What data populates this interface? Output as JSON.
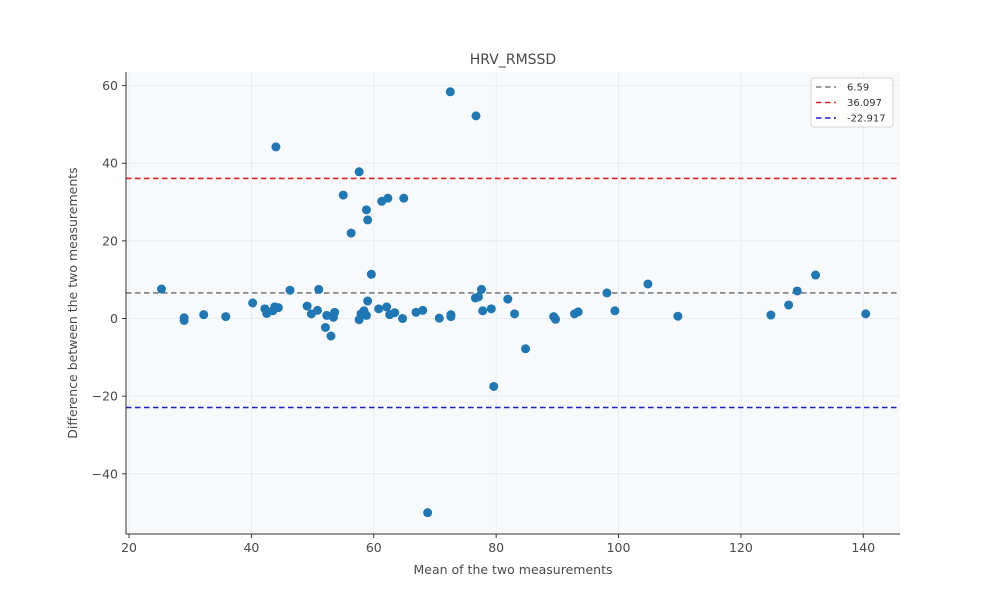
{
  "chart_data": {
    "type": "scatter",
    "title": "HRV_RMSSD",
    "xlabel": "Mean of the two measurements",
    "ylabel": "Difference between the two measurements",
    "xlim": [
      19.5,
      146
    ],
    "ylim": [
      -55.5,
      63.5
    ],
    "xticks": [
      20,
      40,
      60,
      80,
      100,
      120,
      140
    ],
    "yticks": [
      -40,
      -20,
      0,
      20,
      40,
      60
    ],
    "grid": true,
    "legend_position": "top-right",
    "point_color": "#1f77b4",
    "points": [
      [
        25.3,
        7.6
      ],
      [
        29,
        0.2
      ],
      [
        29,
        -0.5
      ],
      [
        32.2,
        1.0
      ],
      [
        35.8,
        0.5
      ],
      [
        40.2,
        4.0
      ],
      [
        42.2,
        2.5
      ],
      [
        42.5,
        1.3
      ],
      [
        43.5,
        2.0
      ],
      [
        43.8,
        3.0
      ],
      [
        44.4,
        2.8
      ],
      [
        44.0,
        44.2
      ],
      [
        46.3,
        7.3
      ],
      [
        49.1,
        3.2
      ],
      [
        49.8,
        1.2
      ],
      [
        50.8,
        2.1
      ],
      [
        51.0,
        7.5
      ],
      [
        52.1,
        -2.3
      ],
      [
        52.3,
        0.8
      ],
      [
        53.0,
        -4.5
      ],
      [
        53.4,
        0.3
      ],
      [
        53.6,
        1.6
      ],
      [
        55.0,
        31.8
      ],
      [
        56.3,
        22.0
      ],
      [
        57.6,
        37.8
      ],
      [
        57.6,
        -0.3
      ],
      [
        57.9,
        1.2
      ],
      [
        58.4,
        2.0
      ],
      [
        58.8,
        28.0
      ],
      [
        58.8,
        0.8
      ],
      [
        59.0,
        4.5
      ],
      [
        59.0,
        25.4
      ],
      [
        59.6,
        11.4
      ],
      [
        60.8,
        2.5
      ],
      [
        61.3,
        30.2
      ],
      [
        62.1,
        3.0
      ],
      [
        62.3,
        31.0
      ],
      [
        62.6,
        1.0
      ],
      [
        63.4,
        1.5
      ],
      [
        64.7,
        0.0
      ],
      [
        64.9,
        31.0
      ],
      [
        66.9,
        1.6
      ],
      [
        68.0,
        2.1
      ],
      [
        68.8,
        -50.0
      ],
      [
        70.7,
        0.1
      ],
      [
        72.6,
        1.0
      ],
      [
        72.6,
        0.5
      ],
      [
        72.5,
        58.4
      ],
      [
        76.6,
        5.3
      ],
      [
        77.1,
        5.6
      ],
      [
        76.7,
        52.2
      ],
      [
        77.6,
        7.5
      ],
      [
        77.8,
        2.0
      ],
      [
        79.2,
        2.5
      ],
      [
        79.6,
        -17.5
      ],
      [
        81.9,
        5.0
      ],
      [
        83.0,
        1.2
      ],
      [
        84.8,
        -7.8
      ],
      [
        89.4,
        0.5
      ],
      [
        89.7,
        -0.2
      ],
      [
        92.8,
        1.2
      ],
      [
        93.4,
        1.7
      ],
      [
        98.1,
        6.6
      ],
      [
        99.4,
        2.0
      ],
      [
        104.8,
        8.9
      ],
      [
        109.7,
        0.6
      ],
      [
        124.9,
        0.9
      ],
      [
        127.8,
        3.5
      ],
      [
        129.2,
        7.1
      ],
      [
        132.2,
        11.2
      ],
      [
        140.4,
        1.2
      ]
    ],
    "reference_lines": [
      {
        "label": "6.59",
        "y": 6.59,
        "color": "#7f7f7f"
      },
      {
        "label": "36.097",
        "y": 36.097,
        "color": "#d62728"
      },
      {
        "label": "-22.917",
        "y": -22.917,
        "color": "#1f1fc8"
      }
    ]
  }
}
